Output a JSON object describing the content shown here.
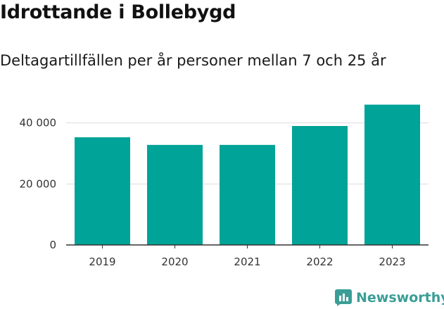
{
  "header": {
    "title": "Idrottande i Bollebygd",
    "subtitle": "Deltagartillfällen per år personer mellan 7 och 25 år"
  },
  "brand": {
    "name": "Newsworthy",
    "icon": "bar-chart-logo-icon",
    "color": "#3a9e96"
  },
  "chart_data": {
    "type": "bar",
    "categories": [
      "2019",
      "2020",
      "2021",
      "2022",
      "2023"
    ],
    "values": [
      35300,
      32800,
      32800,
      39000,
      46000
    ],
    "ylim": [
      0,
      48000
    ],
    "yticks": [
      0,
      20000,
      40000
    ],
    "ytick_labels": [
      "0",
      "20 000",
      "40 000"
    ],
    "bar_color": "#00a398",
    "grid": true,
    "title": "Idrottande i Bollebygd",
    "subtitle": "Deltagartillfällen per år personer mellan 7 och 25 år",
    "xlabel": "",
    "ylabel": ""
  }
}
